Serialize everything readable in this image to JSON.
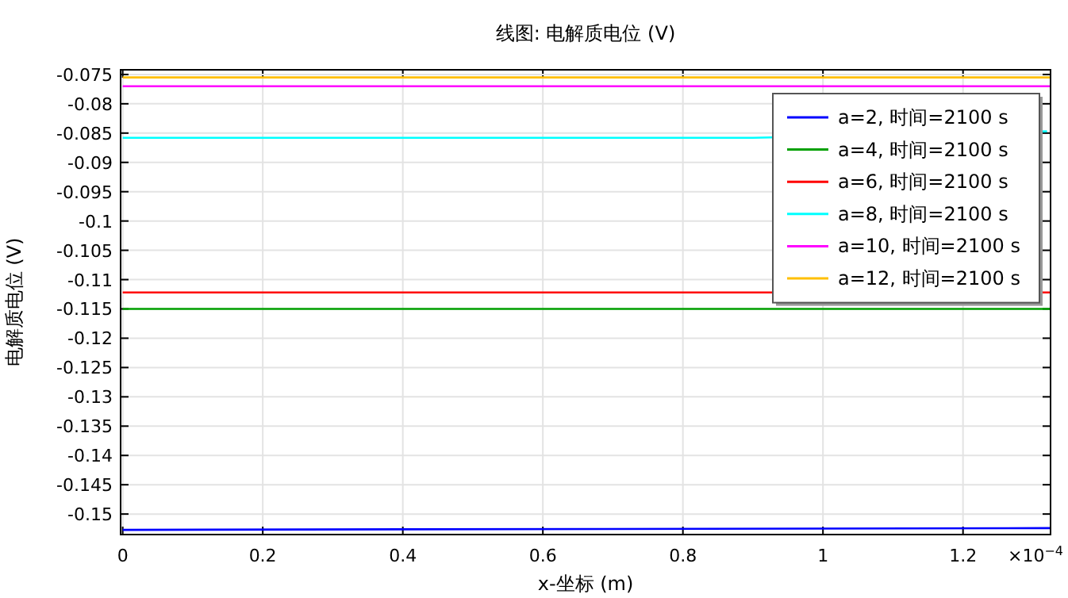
{
  "chart_data": {
    "type": "line",
    "title": "线图: 电解质电位 (V)",
    "xlabel": "x-坐标 (m)",
    "ylabel": "电解质电位 (V)",
    "annotations": [
      "×10$^{−4}$"
    ],
    "xlim": [
      -0.003,
      1.325
    ],
    "ylim": [
      -0.1535,
      -0.0742
    ],
    "xticks": [
      0,
      0.2,
      0.4,
      0.6,
      0.8,
      1,
      1.2
    ],
    "yticks": [
      -0.075,
      -0.08,
      -0.085,
      -0.09,
      -0.095,
      -0.1,
      -0.105,
      -0.11,
      -0.115,
      -0.12,
      -0.125,
      -0.13,
      -0.135,
      -0.14,
      -0.145,
      -0.15
    ],
    "grid": true,
    "legend": "top right",
    "line_style": "solid",
    "x": [
      0,
      1.325
    ],
    "series": [
      {
        "name": "a=2, 时间=2100 s",
        "color": "#0000ff",
        "values": [
          -0.1527,
          -0.1524
        ]
      },
      {
        "name": "a=4, 时间=2100 s",
        "color": "#00a000",
        "values": [
          -0.115,
          -0.115
        ]
      },
      {
        "name": "a=6, 时间=2100 s",
        "color": "#ff0000",
        "values": [
          -0.1122,
          -0.1122
        ]
      },
      {
        "name": "a=8, 时间=2100 s",
        "color": "#00ffff",
        "x": [
          0,
          0.9,
          1.32
        ],
        "values": [
          -0.0858,
          -0.0858,
          -0.0847
        ]
      },
      {
        "name": "a=10, 时间=2100 s",
        "color": "#ff00ff",
        "values": [
          -0.077,
          -0.077
        ]
      },
      {
        "name": "a=12, 时间=2100 s",
        "color": "#ffbf00",
        "values": [
          -0.0755,
          -0.0755
        ]
      }
    ]
  }
}
